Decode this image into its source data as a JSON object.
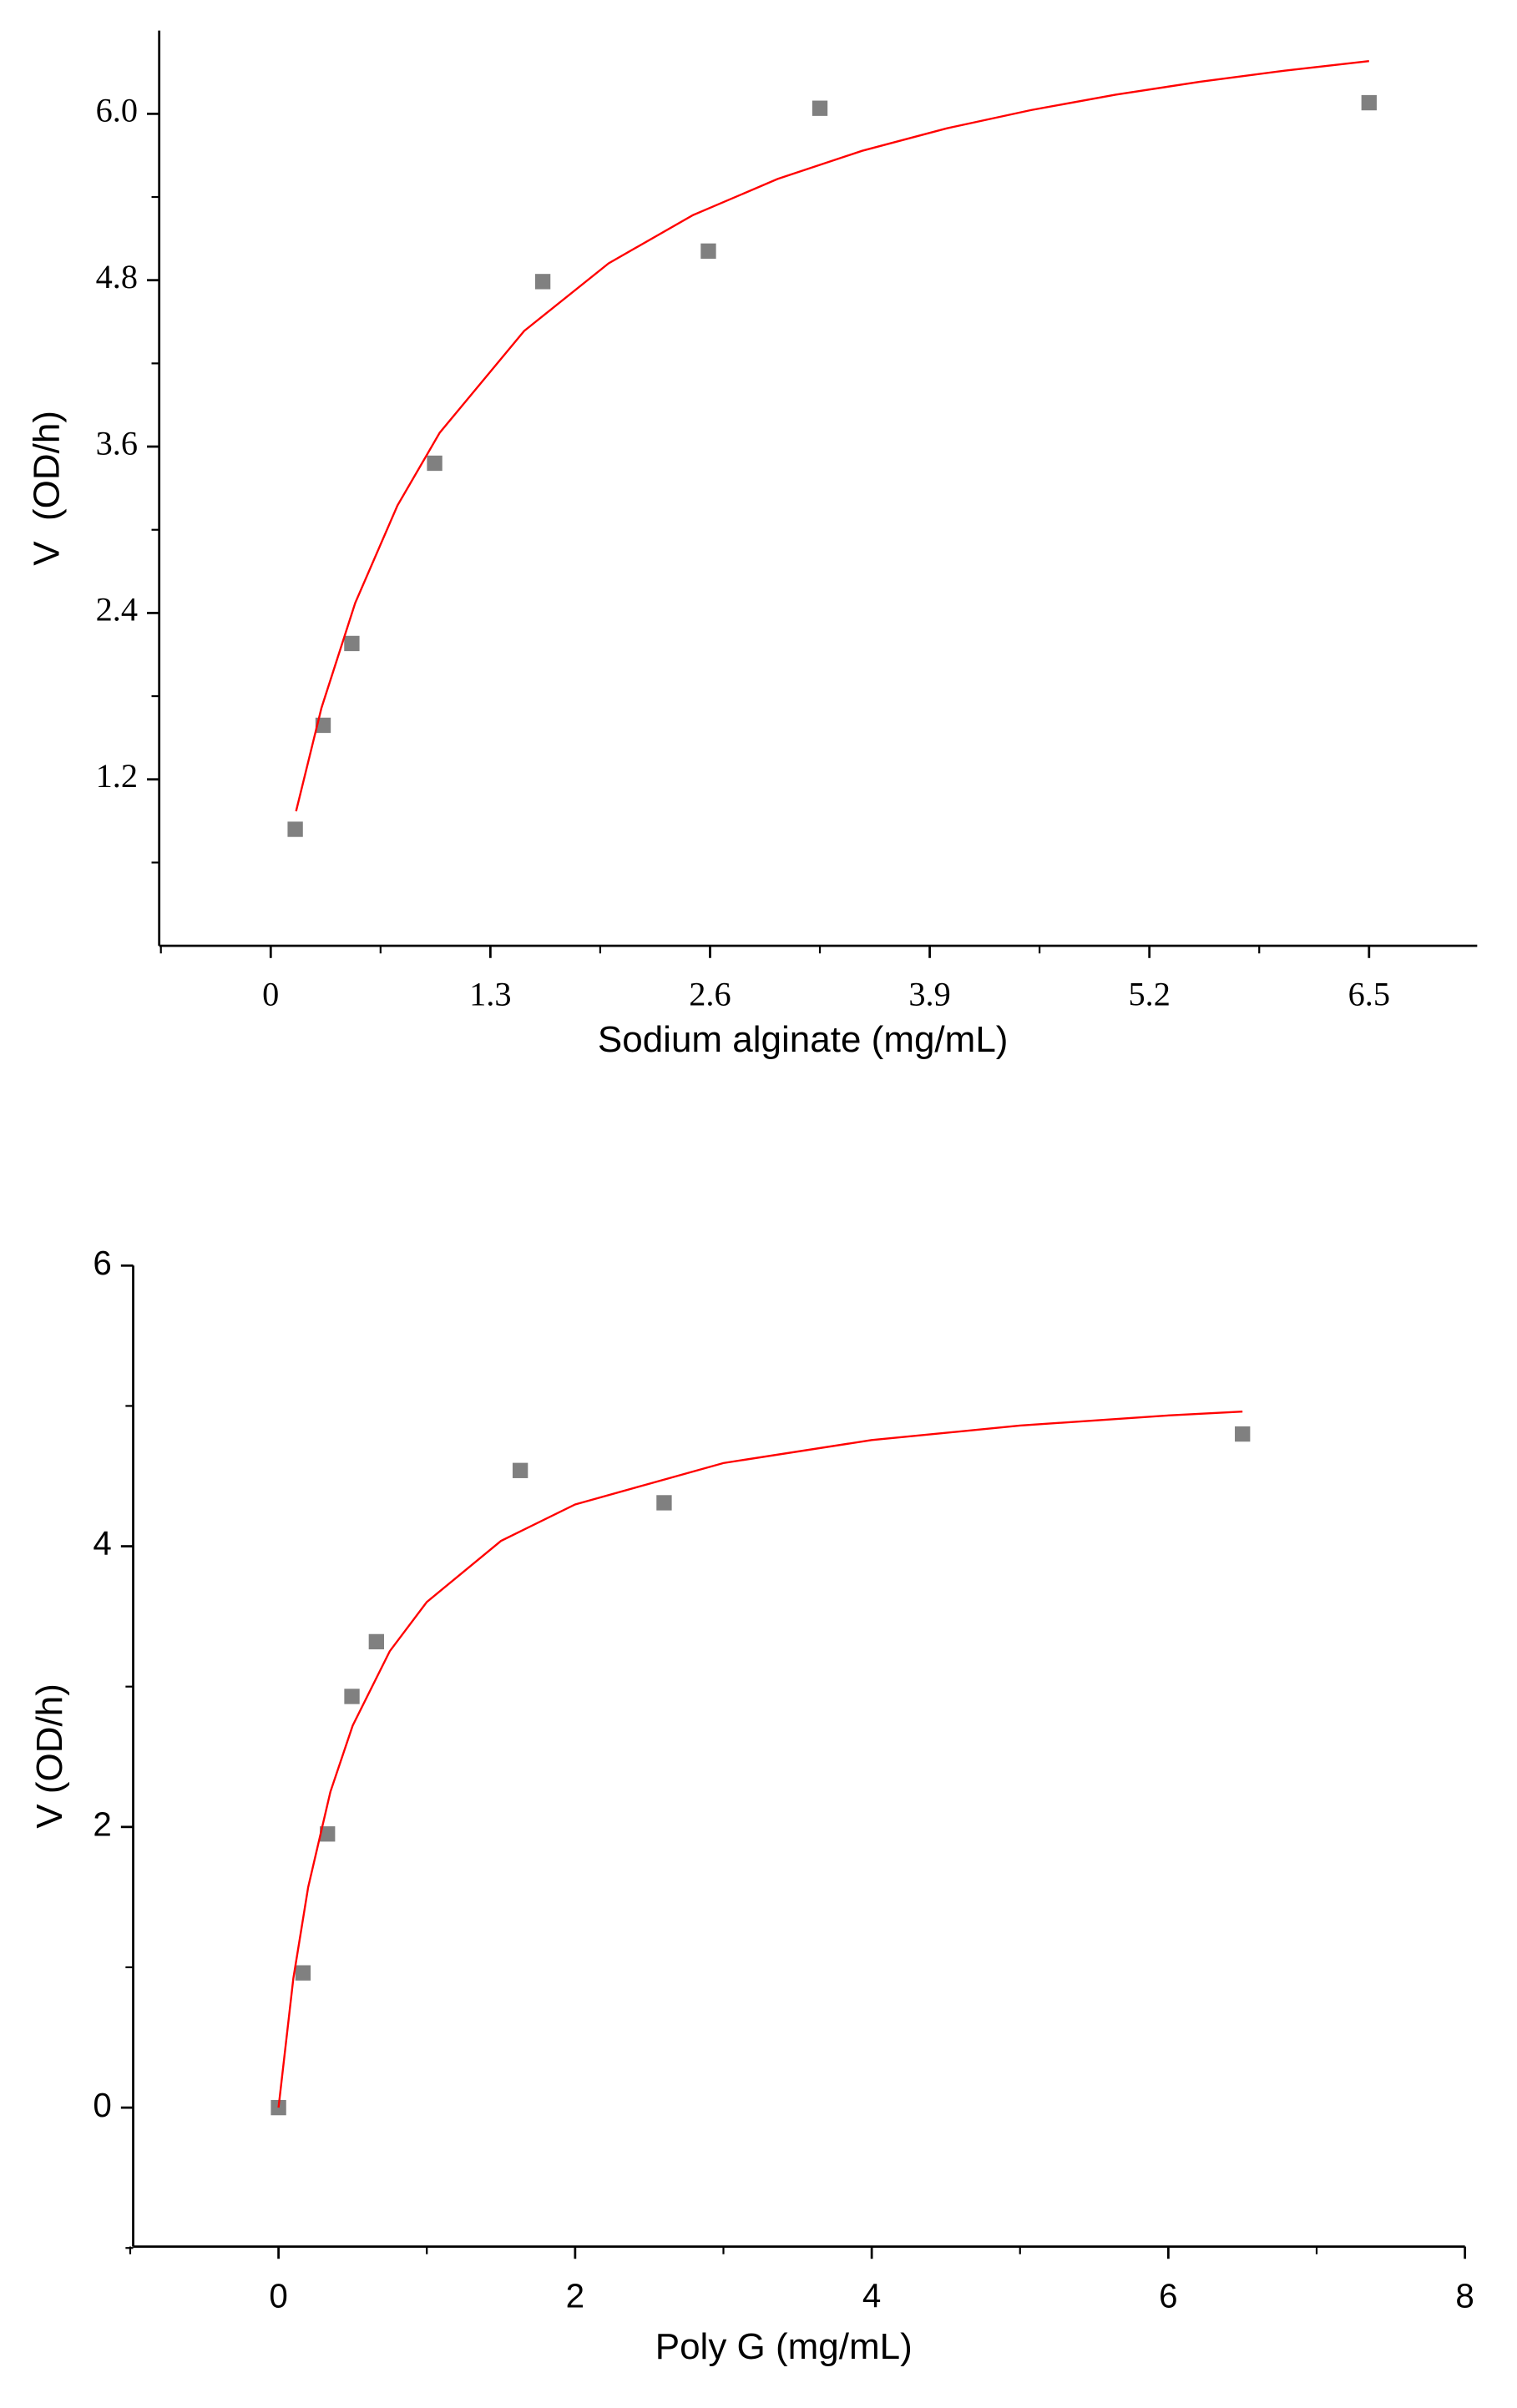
{
  "chart_data": [
    {
      "type": "scatter",
      "x_label": "Sodium alginate (mg/mL)",
      "y_label": "V  (OD/h)",
      "xlim": [
        -0.66,
        7.14
      ],
      "ylim": [
        0,
        6.6
      ],
      "xticks": [
        0,
        1.3,
        2.6,
        3.9,
        5.2,
        6.5
      ],
      "xminorticks": [
        -0.65,
        0.65,
        1.95,
        3.25,
        4.55,
        5.85
      ],
      "yticks": [
        1.2,
        2.4,
        3.6,
        4.8,
        {
          "value": 6,
          "label": "6.0"
        }
      ],
      "yminorticks": [
        0.6,
        1.8,
        3.0,
        4.2,
        5.4
      ],
      "tick_font": "serif",
      "series": [
        {
          "marker": "square",
          "color": "#808080",
          "x": [
            0.145,
            0.31,
            0.48,
            0.97,
            1.61,
            2.59,
            3.25,
            6.5
          ],
          "values": [
            0.84,
            1.59,
            2.18,
            3.48,
            4.79,
            5.01,
            6.04,
            6.08
          ]
        },
        {
          "marker": "line",
          "color": "#ff0000",
          "x": [
            0.15,
            0.3,
            0.5,
            0.75,
            1,
            1.5,
            2,
            2.5,
            3,
            3.5,
            4,
            4.5,
            5,
            5.5,
            6,
            6.5
          ],
          "values": [
            0.97,
            1.714,
            2.472,
            3.175,
            3.7,
            4.434,
            4.922,
            5.27,
            5.53,
            5.733,
            5.895,
            6.027,
            6.138,
            6.231,
            6.311,
            6.38
          ]
        }
      ]
    },
    {
      "type": "scatter",
      "x_label": "Poly G (mg/mL)",
      "y_label": "V (OD/h)",
      "xlim": [
        -0.98,
        8
      ],
      "ylim": [
        -0.99,
        6
      ],
      "xticks": [
        0,
        2,
        4,
        6,
        8
      ],
      "xminorticks": [
        -1,
        1,
        3,
        5,
        7
      ],
      "yticks": [
        0,
        2,
        4,
        6
      ],
      "yminorticks": [
        -1,
        1,
        3,
        5
      ],
      "tick_font": "sans",
      "series": [
        {
          "marker": "square",
          "color": "#808080",
          "x": [
            0,
            0.165,
            0.33,
            0.495,
            0.66,
            1.63,
            2.6,
            6.5
          ],
          "values": [
            0,
            0.96,
            1.95,
            2.93,
            3.32,
            4.54,
            4.31,
            4.8
          ]
        },
        {
          "marker": "line",
          "color": "#ff0000",
          "x": [
            0,
            0.1,
            0.2,
            0.35,
            0.5,
            0.75,
            1,
            1.5,
            2,
            3,
            4,
            5,
            6,
            6.5
          ],
          "values": [
            0,
            0.921,
            1.571,
            2.251,
            2.722,
            3.252,
            3.603,
            4.038,
            4.298,
            4.593,
            4.757,
            4.86,
            4.932,
            4.96
          ]
        }
      ]
    }
  ]
}
